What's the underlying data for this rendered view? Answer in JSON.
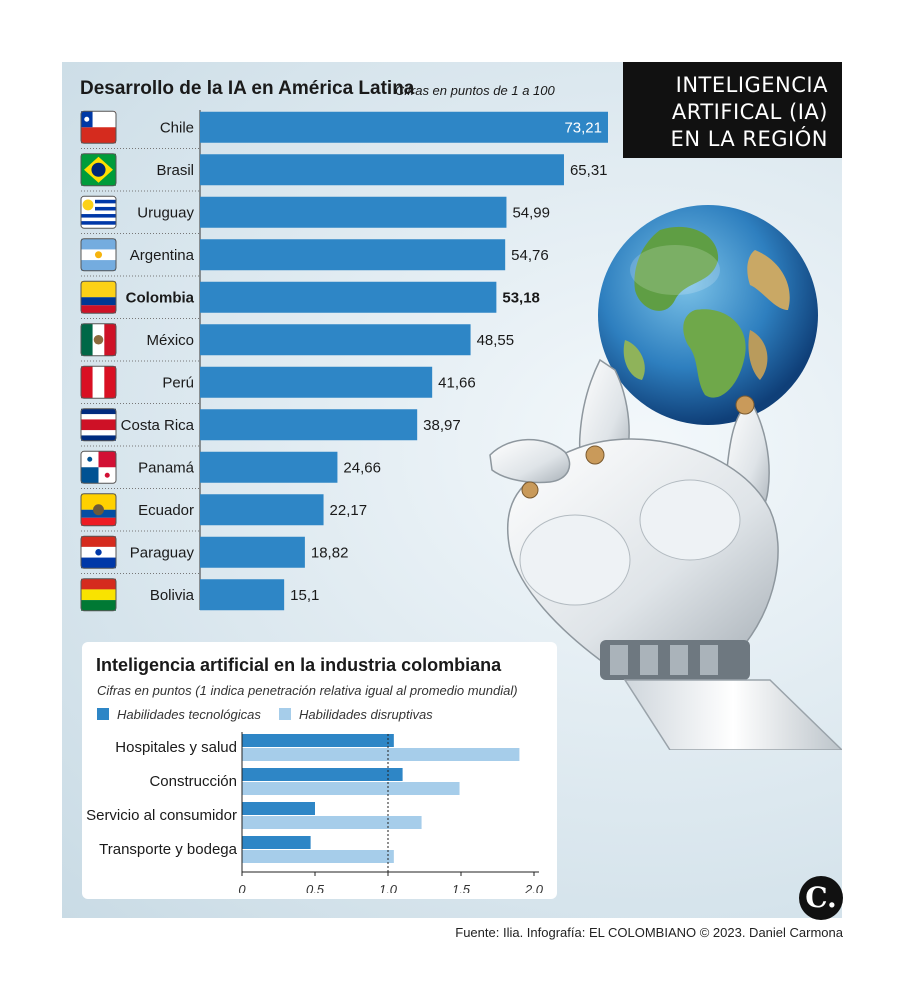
{
  "header": {
    "line1": "INTELIGENCIA",
    "line2": "ARTIFICAL (IA)",
    "line3": "EN LA REGIÓN"
  },
  "main": {
    "title": "Desarrollo de la IA en América Latina",
    "subtitle": "Cifras en puntos de 1 a 100"
  },
  "industry": {
    "title": "Inteligencia artificial en la industria colombiana",
    "subtitle": "Cifras en puntos (1 indica penetración relativa igual al promedio mundial)",
    "legend_tec": "Habilidades tecnológicas",
    "legend_dis": "Habilidades disruptivas"
  },
  "colors": {
    "bar": "#2e86c6",
    "bar_light": "#a6cdea",
    "header_bg": "#111111"
  },
  "source": "Fuente: Ilia. Infografía: EL COLOMBIANO © 2023. Daniel Carmona",
  "logo": "C.",
  "chart_data": [
    {
      "type": "bar",
      "orientation": "horizontal",
      "title": "Desarrollo de la IA en América Latina",
      "subtitle": "Cifras en puntos de 1 a 100",
      "categories": [
        "Chile",
        "Brasil",
        "Uruguay",
        "Argentina",
        "Colombia",
        "México",
        "Perú",
        "Costa Rica",
        "Panamá",
        "Ecuador",
        "Paraguay",
        "Bolivia"
      ],
      "values": [
        73.21,
        65.31,
        54.99,
        54.76,
        53.18,
        48.55,
        41.66,
        38.97,
        24.66,
        22.17,
        18.82,
        15.1
      ],
      "value_labels": [
        "73,21",
        "65,31",
        "54,99",
        "54,76",
        "53,18",
        "48,55",
        "41,66",
        "38,97",
        "24,66",
        "22,17",
        "18,82",
        "15,1"
      ],
      "highlight": "Colombia",
      "flags": [
        "chile-flag",
        "brazil-flag",
        "uruguay-flag",
        "argentina-flag",
        "colombia-flag",
        "mexico-flag",
        "peru-flag",
        "costa-rica-flag",
        "panama-flag",
        "ecuador-flag",
        "paraguay-flag",
        "bolivia-flag"
      ],
      "xlim": [
        0,
        73.21
      ]
    },
    {
      "type": "bar",
      "orientation": "horizontal",
      "title": "Inteligencia artificial en la industria colombiana",
      "subtitle": "Cifras en puntos (1 indica penetración relativa igual al promedio mundial)",
      "categories": [
        "Hospitales y salud",
        "Construcción",
        "Servicio al consumidor",
        "Transporte y bodega"
      ],
      "series": [
        {
          "name": "Habilidades tecnológicas",
          "values": [
            1.04,
            1.1,
            0.5,
            0.47
          ]
        },
        {
          "name": "Habilidades disruptivas",
          "values": [
            1.9,
            1.49,
            1.23,
            1.04
          ]
        }
      ],
      "xticks": [
        0,
        0.5,
        1.0,
        1.5,
        2.0
      ],
      "xtick_labels": [
        "0",
        "0,5",
        "1,0",
        "1,5",
        "2,0"
      ],
      "xlim": [
        0,
        2.0
      ],
      "reference_line": 1.0
    }
  ]
}
